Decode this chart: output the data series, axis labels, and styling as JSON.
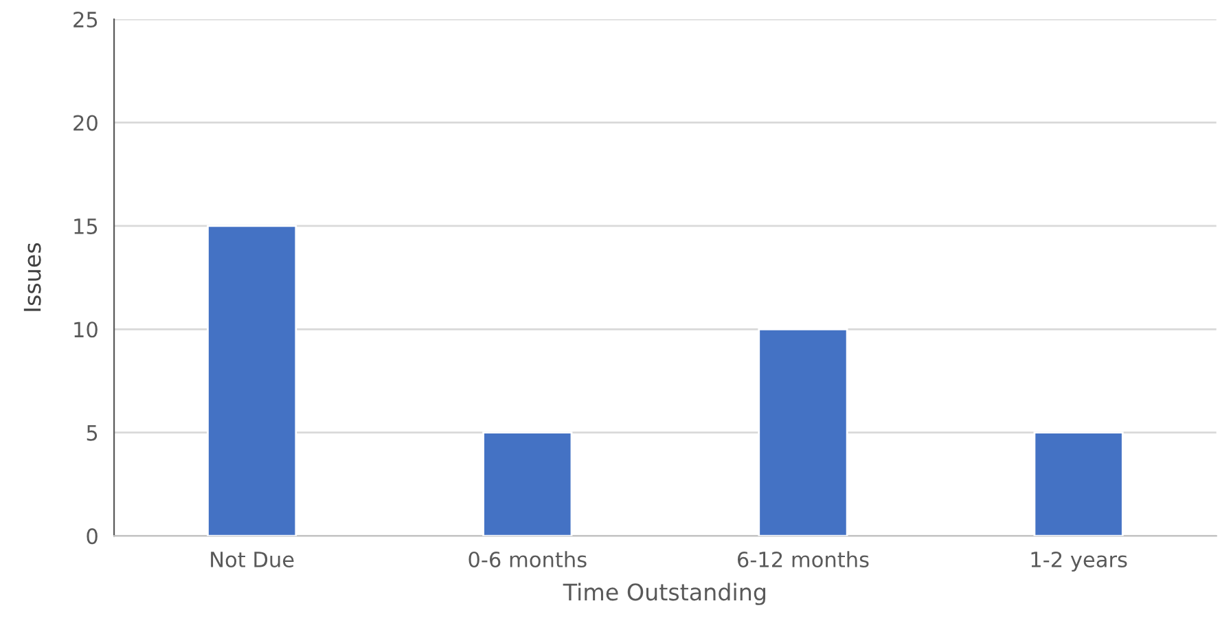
{
  "chart_data": {
    "type": "bar",
    "xlabel": "Time Outstanding",
    "ylabel": "Issues",
    "categories": [
      "Not Due",
      "0-6 months",
      "6-12 months",
      "1-2 years"
    ],
    "values": [
      15,
      5,
      10,
      5
    ],
    "color": "#4472c4",
    "ylim": [
      0,
      25
    ],
    "yticks": [
      0,
      5,
      10,
      15,
      20,
      25
    ],
    "grid": "y",
    "legend": false
  }
}
